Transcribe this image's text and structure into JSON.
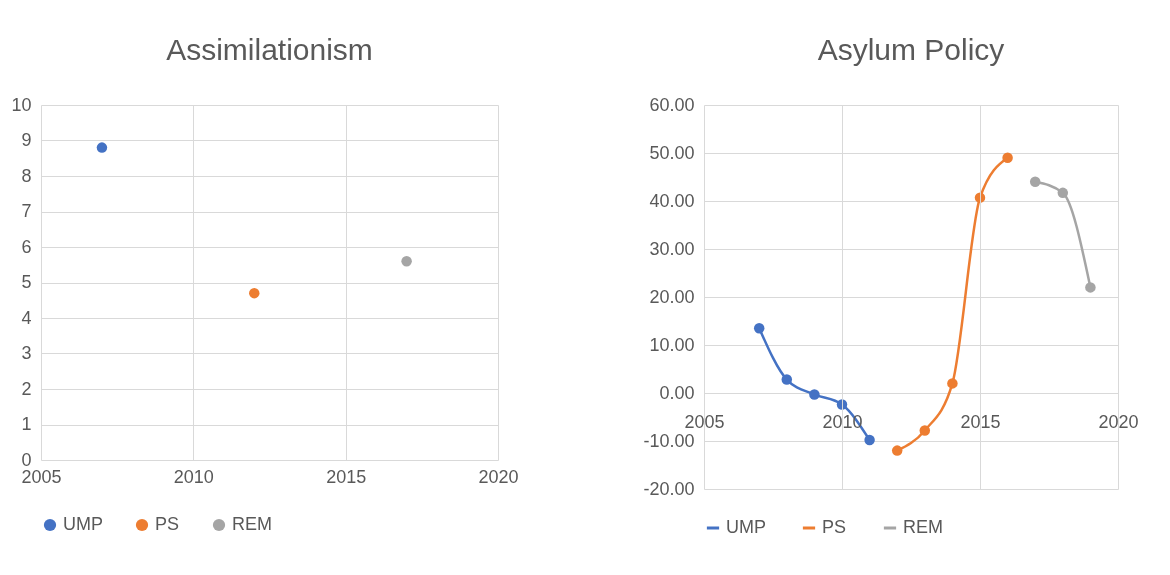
{
  "chart_data": [
    {
      "type": "scatter",
      "title": "Assimilationism",
      "xlim": [
        2005,
        2020
      ],
      "xticks": [
        2005,
        2010,
        2015,
        2020
      ],
      "ylim": [
        0,
        10
      ],
      "yticks": [
        0,
        1,
        2,
        3,
        4,
        5,
        6,
        7,
        8,
        9,
        10
      ],
      "grid": true,
      "legend": "bottom",
      "marker": "circle",
      "series": [
        {
          "name": "UMP",
          "color": "#4472c4",
          "x": [
            2007
          ],
          "values": [
            8.8
          ]
        },
        {
          "name": "PS",
          "color": "#ed7d31",
          "x": [
            2012
          ],
          "values": [
            4.7
          ]
        },
        {
          "name": "REM",
          "color": "#a5a5a5",
          "x": [
            2017
          ],
          "values": [
            5.6
          ]
        }
      ]
    },
    {
      "type": "line",
      "title": "Asylum Policy",
      "xlim": [
        2005,
        2020
      ],
      "xticks": [
        2005,
        2010,
        2015,
        2020
      ],
      "ylim": [
        -20,
        60
      ],
      "yticks": [
        {
          "value": -20,
          "label": "-20.00"
        },
        {
          "value": -10,
          "label": "-10.00"
        },
        {
          "value": 0,
          "label": "0.00"
        },
        {
          "value": 10,
          "label": "10.00"
        },
        {
          "value": 20,
          "label": "20.00"
        },
        {
          "value": 30,
          "label": "30.00"
        },
        {
          "value": 40,
          "label": "40.00"
        },
        {
          "value": 50,
          "label": "50.00"
        },
        {
          "value": 60,
          "label": "60.00"
        }
      ],
      "grid": true,
      "legend": "bottom",
      "marker": "circle",
      "line_style": "solid",
      "series": [
        {
          "name": "UMP",
          "color": "#4472c4",
          "x": [
            2007,
            2008,
            2009,
            2010,
            2011
          ],
          "values": [
            13.5,
            2.8,
            -0.3,
            -2.4,
            -9.8
          ]
        },
        {
          "name": "PS",
          "color": "#ed7d31",
          "x": [
            2012,
            2013,
            2014,
            2015,
            2016
          ],
          "values": [
            -12,
            -7.8,
            2,
            40.7,
            49
          ]
        },
        {
          "name": "REM",
          "color": "#a5a5a5",
          "x": [
            2017,
            2018,
            2019
          ],
          "values": [
            44,
            41.7,
            22
          ]
        }
      ]
    }
  ]
}
